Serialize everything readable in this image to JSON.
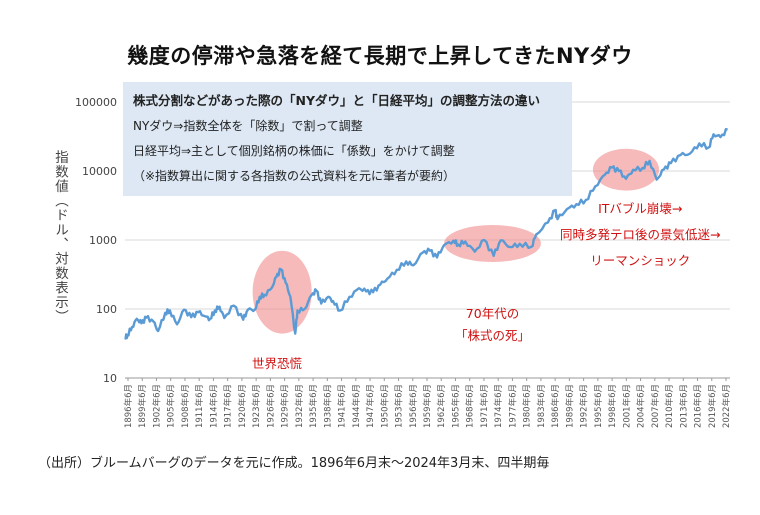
{
  "chart_data": {
    "type": "line",
    "title": "幾度の停滞や急落を経て長期で上昇してきたNYダウ",
    "ylabel": "指数値（ドル、対数表示）",
    "yscale": "log",
    "ylim": [
      10,
      100000
    ],
    "yticks": [
      "10",
      "100",
      "1000",
      "10000",
      "100000"
    ],
    "grid": "horizontal",
    "x_tick_labels": [
      "1896年6月",
      "1899年6月",
      "1902年6月",
      "1905年6月",
      "1908年6月",
      "1911年6月",
      "1914年6月",
      "1917年6月",
      "1920年6月",
      "1923年6月",
      "1926年6月",
      "1929年6月",
      "1932年6月",
      "1935年6月",
      "1938年6月",
      "1941年6月",
      "1944年6月",
      "1947年6月",
      "1950年6月",
      "1953年6月",
      "1956年6月",
      "1959年6月",
      "1962年6月",
      "1965年6月",
      "1968年6月",
      "1971年6月",
      "1974年6月",
      "1977年6月",
      "1980年6月",
      "1983年6月",
      "1986年6月",
      "1989年6月",
      "1992年6月",
      "1995年6月",
      "1998年6月",
      "2001年6月",
      "2004年6月",
      "2007年6月",
      "2010年6月",
      "2013年6月",
      "2016年6月",
      "2019年6月",
      "2022年6月"
    ],
    "series": [
      {
        "name": "",
        "color": "#5b9bd5",
        "points": [
          [
            1896.5,
            38
          ],
          [
            1897.0,
            42
          ],
          [
            1898.0,
            55
          ],
          [
            1899.0,
            72
          ],
          [
            1900.0,
            62
          ],
          [
            1901.0,
            75
          ],
          [
            1902.5,
            66
          ],
          [
            1903.5,
            48
          ],
          [
            1905.0,
            88
          ],
          [
            1906.0,
            95
          ],
          [
            1907.5,
            60
          ],
          [
            1909.0,
            98
          ],
          [
            1910.5,
            76
          ],
          [
            1912.0,
            90
          ],
          [
            1913.5,
            78
          ],
          [
            1914.5,
            72
          ],
          [
            1915.5,
            95
          ],
          [
            1916.5,
            108
          ],
          [
            1917.5,
            74
          ],
          [
            1919.5,
            112
          ],
          [
            1921.5,
            70
          ],
          [
            1922.5,
            98
          ],
          [
            1924.0,
            98
          ],
          [
            1925.0,
            150
          ],
          [
            1926.0,
            160
          ],
          [
            1927.5,
            200
          ],
          [
            1928.5,
            290
          ],
          [
            1929.5,
            375
          ],
          [
            1930.5,
            240
          ],
          [
            1931.5,
            150
          ],
          [
            1932.5,
            44
          ],
          [
            1933.0,
            95
          ],
          [
            1934.5,
            100
          ],
          [
            1936.0,
            160
          ],
          [
            1937.0,
            185
          ],
          [
            1938.0,
            120
          ],
          [
            1939.5,
            150
          ],
          [
            1940.5,
            130
          ],
          [
            1942.0,
            95
          ],
          [
            1944.0,
            150
          ],
          [
            1946.0,
            200
          ],
          [
            1947.5,
            180
          ],
          [
            1949.0,
            175
          ],
          [
            1950.5,
            225
          ],
          [
            1952.0,
            275
          ],
          [
            1954.0,
            370
          ],
          [
            1956.0,
            490
          ],
          [
            1957.5,
            430
          ],
          [
            1959.5,
            660
          ],
          [
            1961.0,
            700
          ],
          [
            1962.5,
            560
          ],
          [
            1964.0,
            840
          ],
          [
            1966.0,
            980
          ],
          [
            1967.0,
            860
          ],
          [
            1968.5,
            950
          ],
          [
            1970.5,
            680
          ],
          [
            1972.5,
            1000
          ],
          [
            1974.5,
            590
          ],
          [
            1976.0,
            990
          ],
          [
            1978.0,
            790
          ],
          [
            1980.0,
            880
          ],
          [
            1982.5,
            800
          ],
          [
            1983.5,
            1200
          ],
          [
            1986.0,
            1800
          ],
          [
            1987.5,
            2700
          ],
          [
            1988.0,
            2000
          ],
          [
            1990.0,
            2800
          ],
          [
            1992.0,
            3300
          ],
          [
            1994.0,
            3800
          ],
          [
            1996.0,
            6000
          ],
          [
            1998.0,
            8800
          ],
          [
            1999.5,
            11200
          ],
          [
            2001.0,
            10000
          ],
          [
            2002.5,
            7700
          ],
          [
            2004.0,
            10400
          ],
          [
            2006.0,
            11100
          ],
          [
            2007.5,
            14000
          ],
          [
            2009.0,
            7500
          ],
          [
            2010.5,
            10500
          ],
          [
            2012.0,
            13000
          ],
          [
            2014.0,
            17000
          ],
          [
            2016.0,
            17800
          ],
          [
            2018.0,
            25000
          ],
          [
            2020.0,
            22000
          ],
          [
            2021.0,
            34000
          ],
          [
            2022.5,
            31000
          ],
          [
            2024.0,
            39800
          ]
        ]
      }
    ],
    "highlights": [
      {
        "label": "世界恐慌",
        "x_range": [
          1923.5,
          1936.0
        ],
        "y_range": [
          44,
          700
        ]
      },
      {
        "label": "70年代の「株式の死」",
        "x_range": [
          1964.0,
          1984.5
        ],
        "y_range": [
          480,
          1650
        ]
      },
      {
        "label": "ITバブル崩壊→同時多発テロ後の景気低迷→リーマンショック",
        "x_range": [
          1995.5,
          2009.5
        ],
        "y_range": [
          5200,
          21000
        ]
      }
    ]
  },
  "note": {
    "heading": "株式分割などがあった際の「NYダウ」と「日経平均」の調整方法の違い",
    "line1": "NYダウ⇒指数全体を「除数」で割って調整",
    "line2": "日経平均⇒主として個別銘柄の株価に「係数」をかけて調整",
    "line3": "（※指数算出に関する各指数の公式資料を元に筆者が要約）"
  },
  "annotations": {
    "depression": "世界恐慌",
    "seventies_line1": "70年代の",
    "seventies_line2": "「株式の死」",
    "it_line1": "ITバブル崩壊→",
    "it_line2": "同時多発テロ後の景気低迷→",
    "it_line3": "リーマンショック"
  },
  "source": "（出所）ブルームバーグのデータを元に作成。1896年6月末～2024年3月末、四半期毎"
}
